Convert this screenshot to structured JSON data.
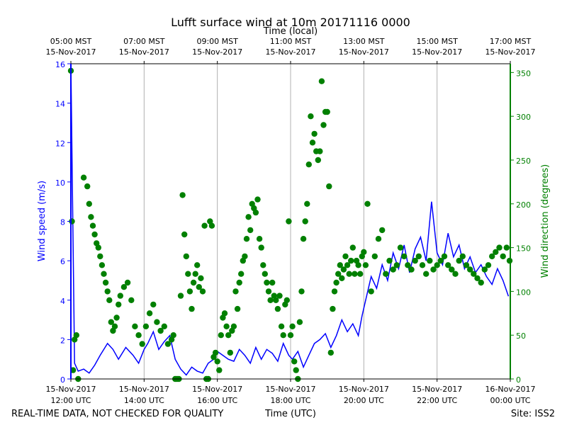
{
  "chart_data": {
    "type": "line",
    "title": "Lufft surface wind at 10m 20171116 0000",
    "top_axis_label": "Time (local)",
    "top_ticks": [
      {
        "line1": "05:00 MST",
        "line2": "15-Nov-2017"
      },
      {
        "line1": "07:00 MST",
        "line2": "15-Nov-2017"
      },
      {
        "line1": "09:00 MST",
        "line2": "15-Nov-2017"
      },
      {
        "line1": "11:00 MST",
        "line2": "15-Nov-2017"
      },
      {
        "line1": "13:00 MST",
        "line2": "15-Nov-2017"
      },
      {
        "line1": "15:00 MST",
        "line2": "15-Nov-2017"
      },
      {
        "line1": "17:00 MST",
        "line2": "15-Nov-2017"
      }
    ],
    "bottom_ticks": [
      {
        "line1": "15-Nov-2017",
        "line2": "12:00 UTC"
      },
      {
        "line1": "15-Nov-2017",
        "line2": "14:00 UTC"
      },
      {
        "line1": "15-Nov-2017",
        "line2": "16:00 UTC"
      },
      {
        "line1": "15-Nov-2017",
        "line2": "18:00 UTC"
      },
      {
        "line1": "15-Nov-2017",
        "line2": "20:00 UTC"
      },
      {
        "line1": "15-Nov-2017",
        "line2": "22:00 UTC"
      },
      {
        "line1": "16-Nov-2017",
        "line2": "00:00 UTC"
      }
    ],
    "xlabel": "Time (UTC)",
    "xlim_hours_utc": [
      12,
      24
    ],
    "ylabel_left": "Wind speed (m/s)",
    "ylim_left": [
      0,
      16
    ],
    "yticks_left": [
      0,
      2,
      4,
      6,
      8,
      10,
      12,
      14,
      16
    ],
    "ylabel_right": "Wind direction (degrees)",
    "ylim_right": [
      0,
      360
    ],
    "yticks_right": [
      0,
      50,
      100,
      150,
      200,
      250,
      300,
      350
    ],
    "grid_vertical": true,
    "series": [
      {
        "name": "Wind speed",
        "axis": "left",
        "style": "line",
        "color": "#0000ff",
        "x": [
          12.0,
          12.1,
          12.2,
          12.35,
          12.5,
          12.65,
          12.8,
          13.0,
          13.15,
          13.3,
          13.5,
          13.7,
          13.85,
          14.0,
          14.1,
          14.25,
          14.4,
          14.55,
          14.7,
          14.85,
          15.0,
          15.15,
          15.3,
          15.45,
          15.6,
          15.75,
          15.9,
          16.0,
          16.15,
          16.3,
          16.45,
          16.6,
          16.75,
          16.9,
          17.05,
          17.2,
          17.35,
          17.5,
          17.65,
          17.8,
          17.95,
          18.05,
          18.2,
          18.35,
          18.5,
          18.65,
          18.8,
          18.95,
          19.1,
          19.25,
          19.4,
          19.55,
          19.7,
          19.85,
          19.95,
          20.05,
          20.2,
          20.35,
          20.5,
          20.65,
          20.8,
          20.95,
          21.1,
          21.25,
          21.4,
          21.55,
          21.7,
          21.85,
          22.0,
          22.15,
          22.3,
          22.45,
          22.6,
          22.75,
          22.9,
          23.05,
          23.2,
          23.35,
          23.5,
          23.65,
          23.8,
          23.95
        ],
        "y": [
          16.0,
          0.8,
          0.4,
          0.5,
          0.3,
          0.7,
          1.2,
          1.8,
          1.5,
          1.0,
          1.6,
          1.2,
          0.8,
          1.5,
          1.8,
          2.4,
          1.5,
          1.9,
          2.2,
          1.0,
          0.5,
          0.2,
          0.6,
          0.4,
          0.3,
          0.8,
          1.0,
          1.4,
          1.2,
          1.0,
          0.9,
          1.5,
          1.2,
          0.8,
          1.6,
          1.0,
          1.5,
          1.3,
          0.9,
          1.8,
          1.2,
          1.0,
          1.4,
          0.6,
          1.2,
          1.8,
          2.0,
          2.3,
          1.6,
          2.2,
          3.0,
          2.4,
          2.8,
          2.2,
          3.2,
          4.0,
          5.2,
          4.6,
          5.8,
          5.0,
          6.4,
          5.6,
          6.8,
          5.4,
          6.6,
          7.2,
          6.0,
          9.0,
          6.4,
          5.8,
          7.4,
          6.2,
          6.8,
          5.6,
          6.2,
          5.4,
          5.8,
          5.2,
          4.8,
          5.6,
          5.0,
          4.2
        ]
      },
      {
        "name": "Wind direction",
        "axis": "right",
        "style": "scatter",
        "color": "#008000",
        "x": [
          12.0,
          12.03,
          12.06,
          12.1,
          12.15,
          12.2,
          12.35,
          12.45,
          12.5,
          12.55,
          12.6,
          12.65,
          12.7,
          12.75,
          12.8,
          12.85,
          12.9,
          12.95,
          13.0,
          13.05,
          13.1,
          13.15,
          13.2,
          13.25,
          13.3,
          13.35,
          13.45,
          13.55,
          13.65,
          13.75,
          13.85,
          13.95,
          14.05,
          14.15,
          14.25,
          14.35,
          14.45,
          14.55,
          14.65,
          14.75,
          14.8,
          14.85,
          14.9,
          14.95,
          15.0,
          15.05,
          15.1,
          15.15,
          15.2,
          15.25,
          15.3,
          15.35,
          15.4,
          15.45,
          15.5,
          15.55,
          15.6,
          15.65,
          15.7,
          15.75,
          15.8,
          15.85,
          15.9,
          15.95,
          16.0,
          16.05,
          16.1,
          16.15,
          16.2,
          16.25,
          16.3,
          16.35,
          16.4,
          16.45,
          16.5,
          16.55,
          16.6,
          16.65,
          16.7,
          16.75,
          16.8,
          16.85,
          16.9,
          16.95,
          17.0,
          17.05,
          17.1,
          17.15,
          17.2,
          17.25,
          17.3,
          17.35,
          17.4,
          17.45,
          17.5,
          17.55,
          17.6,
          17.65,
          17.7,
          17.75,
          17.8,
          17.85,
          17.9,
          17.95,
          18.0,
          18.05,
          18.1,
          18.15,
          18.2,
          18.25,
          18.3,
          18.35,
          18.4,
          18.45,
          18.5,
          18.55,
          18.6,
          18.65,
          18.7,
          18.75,
          18.8,
          18.85,
          18.9,
          18.95,
          19.0,
          19.05,
          19.1,
          19.15,
          19.2,
          19.25,
          19.3,
          19.35,
          19.4,
          19.45,
          19.5,
          19.55,
          19.6,
          19.65,
          19.7,
          19.75,
          19.8,
          19.85,
          19.9,
          19.95,
          20.0,
          20.05,
          20.1,
          20.2,
          20.3,
          20.4,
          20.5,
          20.6,
          20.7,
          20.8,
          20.9,
          21.0,
          21.1,
          21.2,
          21.3,
          21.4,
          21.5,
          21.6,
          21.7,
          21.8,
          21.9,
          22.0,
          22.1,
          22.2,
          22.3,
          22.4,
          22.5,
          22.6,
          22.7,
          22.8,
          22.9,
          23.0,
          23.1,
          23.2,
          23.3,
          23.4,
          23.5,
          23.6,
          23.7,
          23.8,
          23.9,
          23.98
        ],
        "y": [
          352,
          180,
          10,
          45,
          50,
          0,
          230,
          220,
          200,
          185,
          175,
          165,
          155,
          150,
          140,
          130,
          120,
          110,
          100,
          90,
          65,
          55,
          60,
          70,
          85,
          95,
          105,
          110,
          90,
          60,
          50,
          40,
          60,
          75,
          85,
          65,
          55,
          60,
          40,
          45,
          50,
          0,
          0,
          0,
          95,
          210,
          165,
          140,
          120,
          100,
          80,
          110,
          120,
          130,
          105,
          115,
          100,
          175,
          0,
          0,
          180,
          175,
          25,
          30,
          20,
          10,
          50,
          70,
          75,
          60,
          50,
          30,
          55,
          60,
          100,
          80,
          110,
          120,
          135,
          140,
          160,
          185,
          170,
          200,
          195,
          190,
          205,
          160,
          150,
          130,
          120,
          110,
          100,
          90,
          110,
          95,
          90,
          80,
          95,
          60,
          50,
          85,
          90,
          180,
          50,
          60,
          20,
          10,
          0,
          65,
          100,
          160,
          180,
          200,
          245,
          300,
          270,
          280,
          260,
          250,
          260,
          340,
          290,
          305,
          305,
          220,
          30,
          80,
          100,
          110,
          120,
          130,
          115,
          125,
          140,
          130,
          120,
          135,
          150,
          120,
          135,
          130,
          120,
          140,
          145,
          130,
          200,
          100,
          140,
          160,
          170,
          120,
          135,
          125,
          130,
          150,
          140,
          130,
          125,
          135,
          140,
          130,
          120,
          135,
          125,
          130,
          135,
          140,
          130,
          125,
          120,
          135,
          140,
          130,
          125,
          120,
          115,
          110,
          125,
          130,
          140,
          145,
          150,
          140,
          150,
          135
        ]
      }
    ]
  },
  "footer": {
    "left_note": "REAL-TIME DATA, NOT CHECKED FOR QUALITY",
    "xlabel": "Time (UTC)",
    "site": "Site: ISS2"
  }
}
